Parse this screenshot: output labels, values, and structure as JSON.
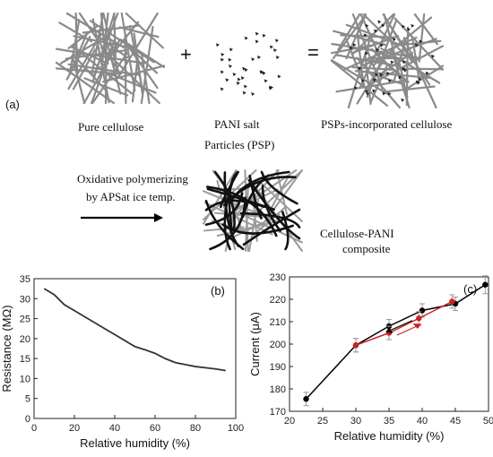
{
  "schematic": {
    "panel_label": "(a)",
    "plus": "+",
    "equals": "=",
    "pure_cellulose": "Pure cellulose",
    "pani_salt_line1": "PANI salt",
    "pani_salt_line2": "Particles (PSP)",
    "psp_cellulose": "PSPs-incorporated cellulose",
    "oxidative_line1": "Oxidative polymerizing",
    "oxidative_line2": "by APSat ice temp.",
    "composite_line1": "Cellulose-PANI",
    "composite_line2": "composite"
  },
  "chart_data": [
    {
      "type": "line",
      "panel_label": "(b)",
      "xlabel": "Relative humidity (%)",
      "ylabel": "Resistance (MΩ)",
      "xlim": [
        0,
        100
      ],
      "ylim": [
        0,
        35
      ],
      "xticks": [
        0,
        20,
        40,
        60,
        80,
        100
      ],
      "yticks": [
        0,
        5,
        10,
        15,
        20,
        25,
        30,
        35
      ],
      "grid": false,
      "series": [
        {
          "color": "#333333",
          "x": [
            5,
            10,
            15,
            20,
            25,
            30,
            35,
            40,
            45,
            50,
            55,
            60,
            65,
            70,
            75,
            80,
            85,
            90,
            95
          ],
          "y": [
            32.5,
            31,
            28.5,
            27,
            25.5,
            24,
            22.5,
            21,
            19.5,
            18,
            17.2,
            16.3,
            15,
            14,
            13.5,
            13,
            12.7,
            12.4,
            12
          ]
        }
      ]
    },
    {
      "type": "line",
      "panel_label": "(c)",
      "xlabel": "Relative humidity (%)",
      "ylabel": "Current (μA)",
      "xlim": [
        20,
        50
      ],
      "ylim": [
        170,
        230
      ],
      "xticks": [
        20,
        25,
        30,
        35,
        40,
        45,
        50
      ],
      "yticks": [
        170,
        180,
        190,
        200,
        210,
        220,
        230
      ],
      "grid": false,
      "series": [
        {
          "color": "#000000",
          "marker": "circle",
          "x": [
            22.5,
            30,
            35,
            40,
            45,
            49.5
          ],
          "y": [
            175.5,
            199.5,
            208,
            215,
            218,
            226.5
          ],
          "yerr": [
            3,
            3,
            3,
            3,
            3,
            4
          ]
        },
        {
          "color": "#cc2222",
          "marker": "circle",
          "x": [
            30,
            35,
            39.5,
            44.5
          ],
          "y": [
            199.5,
            205,
            211.5,
            219
          ],
          "yerr": [
            3,
            3,
            3,
            3
          ]
        }
      ]
    }
  ]
}
